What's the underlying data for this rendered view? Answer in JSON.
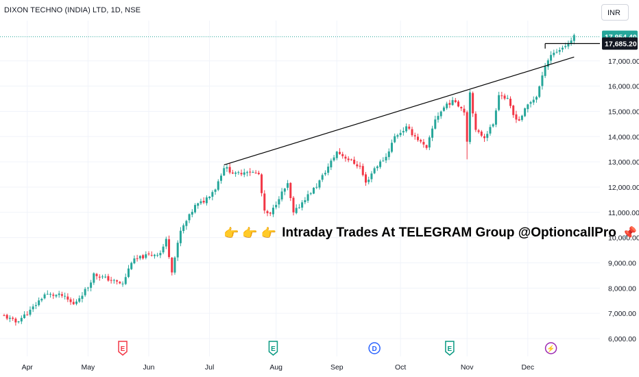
{
  "header": {
    "symbol_title": "DIXON TECHNO (INDIA) LTD, 1D, NSE",
    "currency_label": "INR"
  },
  "banner": {
    "emoji": "👉 👉 👉",
    "text": "Intraday Trades At TELEGRAM Group @OptioncallPro",
    "pin": "📌"
  },
  "colors": {
    "up": "#26a69a",
    "down": "#f23645",
    "last_price": "#26a69a",
    "label_dark": "#131722",
    "grid": "#f0f3fa",
    "trendline": "#000000"
  },
  "chart_data": {
    "type": "candlestick",
    "y_ticks": [
      "6,000.00",
      "7,000.00",
      "8,000.00",
      "9,000.00",
      "10,000.00",
      "11,000.00",
      "12,000.00",
      "13,000.00",
      "14,000.00",
      "15,000.00",
      "16,000.00",
      "17,000.00"
    ],
    "ylim": [
      5850,
      18700
    ],
    "x_labels": [
      {
        "label": "Apr",
        "idx": 8
      },
      {
        "label": "May",
        "idx": 29
      },
      {
        "label": "Jun",
        "idx": 50
      },
      {
        "label": "Jul",
        "idx": 71
      },
      {
        "label": "Aug",
        "idx": 94
      },
      {
        "label": "Sep",
        "idx": 115
      },
      {
        "label": "Oct",
        "idx": 137
      },
      {
        "label": "Nov",
        "idx": 160
      },
      {
        "label": "Dec",
        "idx": 181
      }
    ],
    "price_labels": [
      {
        "text": "17,954.40",
        "value": 17954.4,
        "style": "last"
      },
      {
        "text": "17,685.20",
        "value": 17685.2,
        "style": "dark"
      }
    ],
    "events": [
      {
        "glyph": "E",
        "idx": 41,
        "color": "#f23645",
        "shape": "pentagon"
      },
      {
        "glyph": "E",
        "idx": 93,
        "color": "#089981",
        "shape": "pentagon"
      },
      {
        "glyph": "D",
        "idx": 128,
        "color": "#2962ff",
        "shape": "circle"
      },
      {
        "glyph": "E",
        "idx": 154,
        "color": "#089981",
        "shape": "pentagon"
      },
      {
        "glyph": "⚡",
        "idx": 189,
        "color": "#9c27b0",
        "shape": "circle"
      }
    ],
    "trendline": {
      "from": [
        76,
        12880
      ],
      "to": [
        197,
        17150
      ]
    },
    "hline": {
      "from_idx": 187,
      "value": 17685
    }
  }
}
